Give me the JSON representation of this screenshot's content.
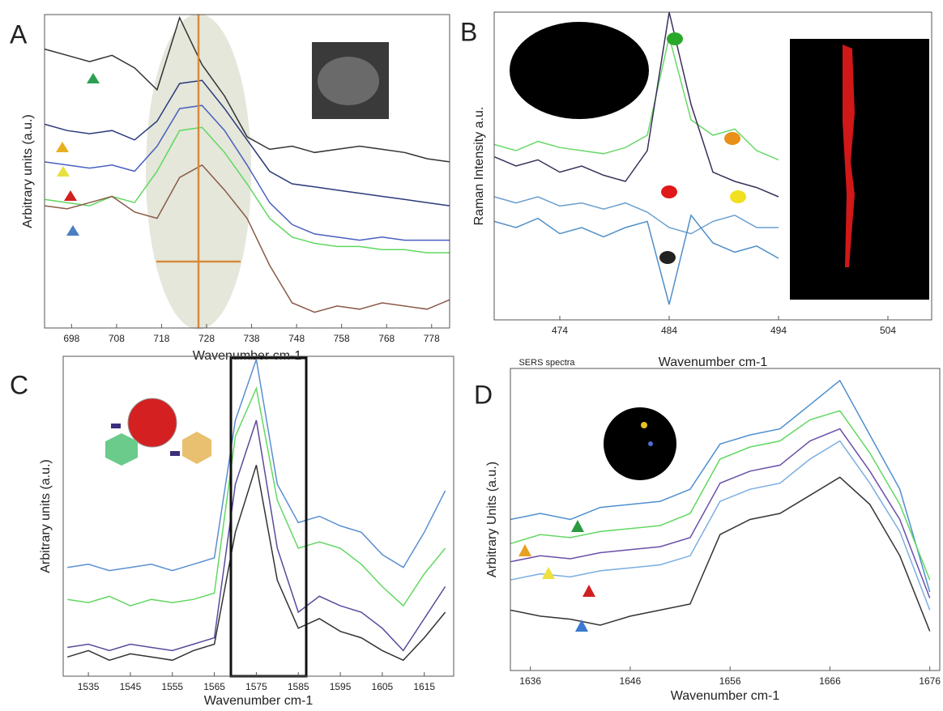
{
  "chart_data": [
    {
      "type": "line",
      "panel_label": "A",
      "xlabel": "Wavenumber cm-1",
      "ylabel": "Arbitrary units (a.u.)",
      "x": [
        692,
        697,
        702,
        707,
        712,
        717,
        722,
        727,
        732,
        737,
        742,
        747,
        752,
        757,
        762,
        767,
        772,
        777,
        782
      ],
      "series": [
        {
          "color": "#333333",
          "values": [
            89,
            87,
            85,
            87,
            83,
            76,
            99,
            84,
            74,
            61,
            57,
            58,
            56,
            57,
            58,
            57,
            56,
            54,
            53
          ]
        },
        {
          "color": "#2b3a7a",
          "values": [
            65,
            63,
            62,
            63,
            60,
            66,
            78,
            79,
            70,
            60,
            50,
            46,
            45,
            44,
            43,
            42,
            41,
            40,
            39
          ]
        },
        {
          "color": "#4a5fc0",
          "values": [
            53,
            52,
            51,
            52,
            50,
            58,
            70,
            71,
            63,
            52,
            40,
            33,
            30,
            29,
            28,
            29,
            28,
            28,
            28
          ]
        },
        {
          "color": "#5fd85f",
          "values": [
            41,
            40,
            39,
            42,
            40,
            50,
            63,
            64,
            56,
            46,
            35,
            29,
            27,
            26,
            26,
            25,
            25,
            24,
            24
          ]
        },
        {
          "color": "#8a5a48",
          "values": [
            39,
            38,
            40,
            42,
            37,
            35,
            48,
            52,
            44,
            35,
            20,
            8,
            5,
            7,
            6,
            8,
            7,
            6,
            9
          ]
        }
      ],
      "xlim": [
        692,
        782
      ],
      "ylim": [
        0,
        100
      ],
      "xticks": [
        698,
        708,
        718,
        728,
        738,
        748,
        758,
        768,
        778
      ]
    },
    {
      "type": "line",
      "panel_label": "B",
      "xlabel": "Wavenumber cm-1",
      "annotation": "SERS spectra",
      "ylabel": "Raman Intensity a.u.",
      "x": [
        468,
        470,
        472,
        474,
        476,
        478,
        480,
        482,
        484,
        486,
        488,
        490,
        492,
        494
      ],
      "series": [
        {
          "color": "#6ad86a",
          "values": [
            57,
            55,
            58,
            56,
            55,
            54,
            56,
            60,
            92,
            65,
            60,
            62,
            55,
            52
          ]
        },
        {
          "color": "#3a2f5a",
          "values": [
            53,
            50,
            52,
            48,
            50,
            47,
            45,
            55,
            100,
            70,
            48,
            45,
            43,
            40
          ]
        },
        {
          "color": "#6a9fd0",
          "values": [
            40,
            38,
            40,
            37,
            38,
            36,
            38,
            35,
            30,
            28,
            32,
            34,
            30,
            30
          ]
        },
        {
          "color": "#4f8fc8",
          "values": [
            32,
            30,
            33,
            28,
            30,
            27,
            30,
            32,
            5,
            34,
            25,
            22,
            24,
            20
          ]
        }
      ],
      "xlim": [
        468,
        508
      ],
      "ylim": [
        0,
        100
      ],
      "xticks": [
        474,
        484,
        494,
        504
      ]
    },
    {
      "type": "line",
      "panel_label": "C",
      "xlabel": "Wavenumber cm-1",
      "ylabel": "Arbitrary units (a.u.)",
      "x": [
        1530,
        1535,
        1540,
        1545,
        1550,
        1555,
        1560,
        1565,
        1570,
        1575,
        1580,
        1585,
        1590,
        1595,
        1600,
        1605,
        1610,
        1615,
        1620
      ],
      "series": [
        {
          "color": "#5b8fd0",
          "values": [
            34,
            35,
            33,
            34,
            35,
            33,
            35,
            37,
            80,
            99,
            60,
            48,
            50,
            47,
            45,
            38,
            34,
            45,
            58
          ]
        },
        {
          "color": "#62d862",
          "values": [
            24,
            23,
            25,
            22,
            24,
            23,
            24,
            26,
            75,
            90,
            55,
            40,
            42,
            40,
            35,
            28,
            22,
            32,
            40
          ]
        },
        {
          "color": "#5a4a9a",
          "values": [
            9,
            10,
            8,
            10,
            9,
            8,
            10,
            12,
            60,
            80,
            40,
            20,
            25,
            22,
            20,
            15,
            8,
            18,
            28
          ]
        },
        {
          "color": "#333333",
          "values": [
            6,
            8,
            5,
            7,
            6,
            5,
            8,
            10,
            45,
            66,
            30,
            15,
            18,
            14,
            12,
            8,
            5,
            12,
            20
          ]
        }
      ],
      "xlim": [
        1529,
        1622
      ],
      "ylim": [
        0,
        100
      ],
      "xticks": [
        1535,
        1545,
        1555,
        1565,
        1575,
        1585,
        1595,
        1605,
        1615
      ]
    },
    {
      "type": "line",
      "panel_label": "D",
      "xlabel": "Wavenumber cm-1",
      "ylabel": "Arbitrary Units (a.u.)",
      "x": [
        1634,
        1637,
        1640,
        1643,
        1646,
        1649,
        1652,
        1655,
        1658,
        1661,
        1664,
        1667,
        1670,
        1673,
        1676
      ],
      "series": [
        {
          "color": "#4f8fd0",
          "values": [
            50,
            52,
            50,
            54,
            55,
            56,
            60,
            75,
            78,
            80,
            88,
            96,
            78,
            60,
            26
          ]
        },
        {
          "color": "#62d862",
          "values": [
            42,
            45,
            44,
            46,
            47,
            48,
            52,
            70,
            74,
            76,
            83,
            86,
            72,
            55,
            30
          ]
        },
        {
          "color": "#6a4fa8",
          "values": [
            36,
            38,
            37,
            39,
            40,
            41,
            44,
            62,
            66,
            68,
            76,
            80,
            66,
            50,
            24
          ]
        },
        {
          "color": "#7aaee0",
          "values": [
            30,
            32,
            31,
            33,
            34,
            35,
            38,
            56,
            60,
            62,
            70,
            76,
            62,
            46,
            20
          ]
        },
        {
          "color": "#333333",
          "values": [
            20,
            18,
            17,
            15,
            18,
            20,
            22,
            45,
            50,
            52,
            58,
            64,
            55,
            38,
            13
          ]
        }
      ],
      "xlim": [
        1634,
        1677
      ],
      "ylim": [
        0,
        100
      ],
      "xticks": [
        1636,
        1646,
        1656,
        1666,
        1676
      ]
    }
  ]
}
